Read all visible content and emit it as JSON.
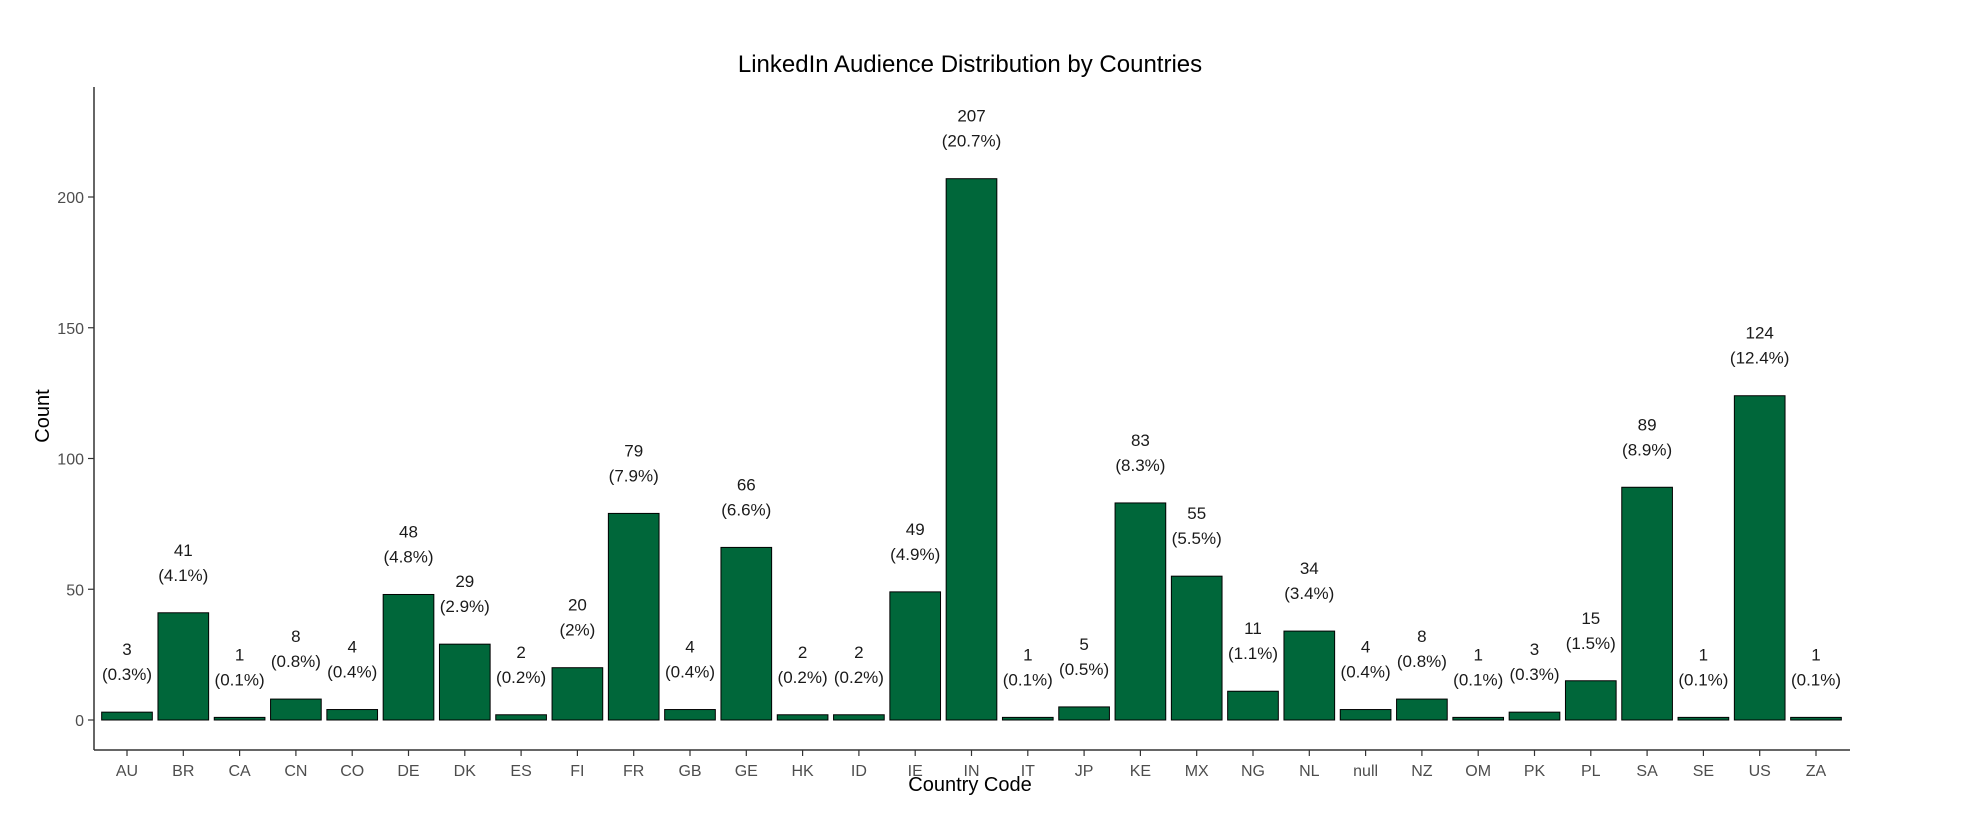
{
  "chart_data": {
    "type": "bar",
    "title": "LinkedIn Audience Distribution by Countries",
    "xlabel": "Country Code",
    "ylabel": "Count",
    "ylim": [
      0,
      230
    ],
    "yticks": [
      0,
      50,
      100,
      150,
      200
    ],
    "grid": false,
    "bar_color": "#00673a",
    "categories": [
      "AU",
      "BR",
      "CA",
      "CN",
      "CO",
      "DE",
      "DK",
      "ES",
      "FI",
      "FR",
      "GB",
      "GE",
      "HK",
      "ID",
      "IE",
      "IN",
      "IT",
      "JP",
      "KE",
      "MX",
      "NG",
      "NL",
      "null",
      "NZ",
      "OM",
      "PK",
      "PL",
      "SA",
      "SE",
      "US",
      "ZA"
    ],
    "values": [
      3,
      41,
      1,
      8,
      4,
      48,
      29,
      2,
      20,
      79,
      4,
      66,
      2,
      2,
      49,
      207,
      1,
      5,
      83,
      55,
      11,
      34,
      4,
      8,
      1,
      3,
      15,
      89,
      1,
      124,
      1
    ],
    "value_labels": [
      "3",
      "41",
      "1",
      "8",
      "4",
      "48",
      "29",
      "2",
      "20",
      "79",
      "4",
      "66",
      "2",
      "2",
      "49",
      "207",
      "1",
      "5",
      "83",
      "55",
      "11",
      "34",
      "4",
      "8",
      "1",
      "3",
      "15",
      "89",
      "1",
      "124",
      "1"
    ],
    "percent_labels": [
      "(0.3%)",
      "(4.1%)",
      "(0.1%)",
      "(0.8%)",
      "(0.4%)",
      "(4.8%)",
      "(2.9%)",
      "(0.2%)",
      "(2%)",
      "(7.9%)",
      "(0.4%)",
      "(6.6%)",
      "(0.2%)",
      "(0.2%)",
      "(4.9%)",
      "(20.7%)",
      "(0.1%)",
      "(0.5%)",
      "(8.3%)",
      "(5.5%)",
      "(1.1%)",
      "(3.4%)",
      "(0.4%)",
      "(0.8%)",
      "(0.1%)",
      "(0.3%)",
      "(1.5%)",
      "(8.9%)",
      "(0.1%)",
      "(12.4%)",
      "(0.1%)"
    ]
  }
}
